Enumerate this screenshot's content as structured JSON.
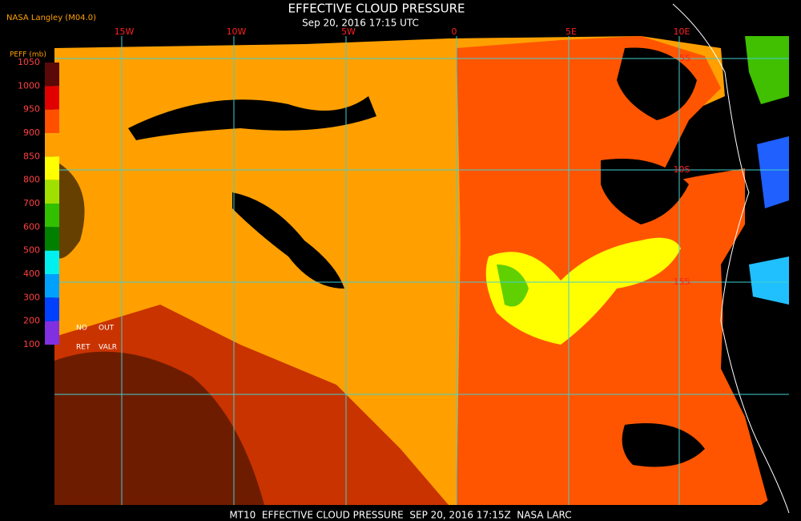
{
  "header": {
    "source": "NASA Langley (M04.0)",
    "title": "EFFECTIVE CLOUD PRESSURE",
    "subtitle": "Sep 20, 2016 17:15 UTC"
  },
  "legend": {
    "title": "PEFF (mb)",
    "levels": [
      "1050",
      "1000",
      "950",
      "900",
      "850",
      "800",
      "700",
      "600",
      "500",
      "400",
      "300",
      "200",
      "100"
    ],
    "colors": [
      "#5a0808",
      "#e00000",
      "#ff5000",
      "#ffa000",
      "#ffff00",
      "#a0e000",
      "#30c000",
      "#008000",
      "#00f0f0",
      "#00a0ff",
      "#0040ff",
      "#8030e0"
    ],
    "notes": [
      "NO",
      "OUT",
      "RET",
      "VALR"
    ]
  },
  "grid": {
    "longitudes": [
      "15W",
      "10W",
      "5W",
      "0",
      "5E",
      "10E"
    ],
    "latitudes": [
      "5S",
      "10S",
      "15S"
    ]
  },
  "footer": "MT10  EFFECTIVE CLOUD PRESSURE  SEP 20, 2016 17:15Z  NASA LARC"
}
